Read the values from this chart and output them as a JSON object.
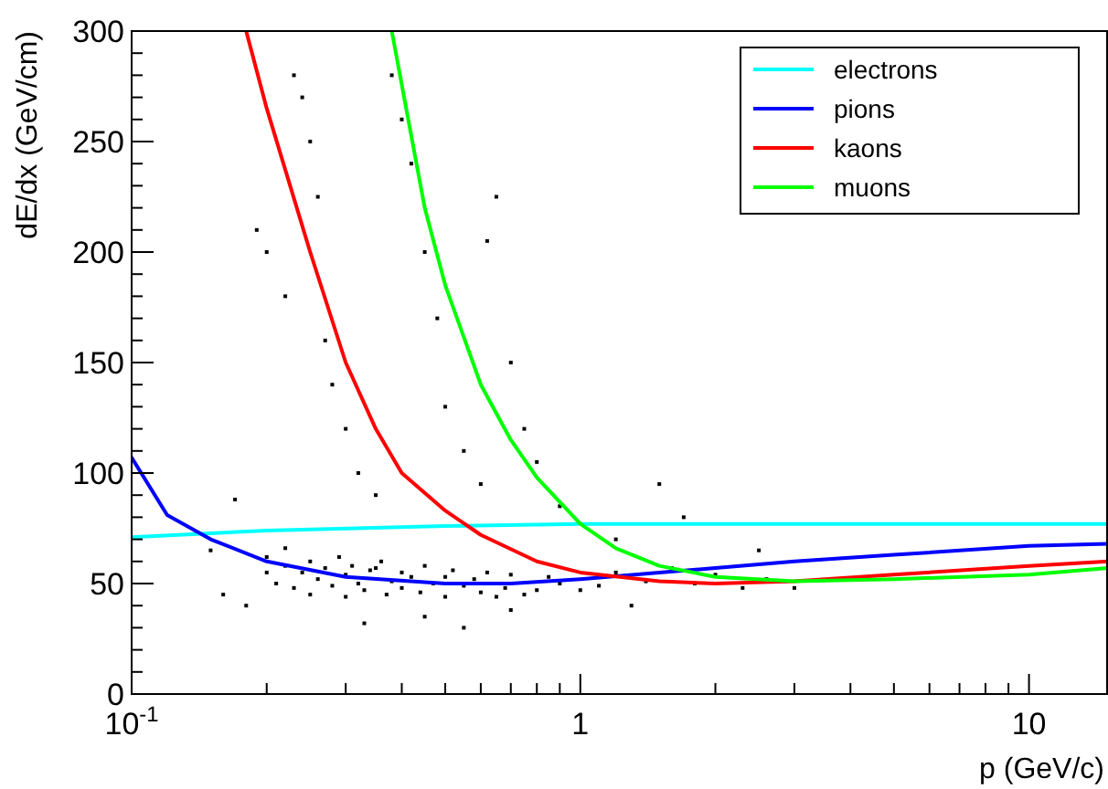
{
  "chart_data": {
    "type": "line",
    "xlabel": "p (GeV/c)",
    "ylabel": "dE/dx (GeV/cm)",
    "log": "x",
    "xlim": [
      0.1,
      15
    ],
    "ylim": [
      0,
      300
    ],
    "xticks": [
      {
        "value": 0.1,
        "label": "10$^{-1}$"
      },
      {
        "value": 0.2,
        "label": null
      },
      {
        "value": 0.3,
        "label": null
      },
      {
        "value": 0.4,
        "label": null
      },
      {
        "value": 0.5,
        "label": null
      },
      {
        "value": 0.6,
        "label": null
      },
      {
        "value": 0.7,
        "label": null
      },
      {
        "value": 0.8,
        "label": null
      },
      {
        "value": 0.9,
        "label": null
      },
      1,
      {
        "value": 2,
        "label": null
      },
      {
        "value": 3,
        "label": null
      },
      {
        "value": 4,
        "label": null
      },
      {
        "value": 5,
        "label": null
      },
      {
        "value": 6,
        "label": null
      },
      {
        "value": 7,
        "label": null
      },
      {
        "value": 8,
        "label": null
      },
      {
        "value": 9,
        "label": null
      },
      10
    ],
    "yticks": [
      0,
      {
        "value": 10,
        "label": null
      },
      {
        "value": 20,
        "label": null
      },
      {
        "value": 30,
        "label": null
      },
      {
        "value": 40,
        "label": null
      },
      50,
      {
        "value": 60,
        "label": null
      },
      {
        "value": 70,
        "label": null
      },
      {
        "value": 80,
        "label": null
      },
      {
        "value": 90,
        "label": null
      },
      100,
      {
        "value": 110,
        "label": null
      },
      {
        "value": 120,
        "label": null
      },
      {
        "value": 130,
        "label": null
      },
      {
        "value": 140,
        "label": null
      },
      150,
      {
        "value": 160,
        "label": null
      },
      {
        "value": 170,
        "label": null
      },
      {
        "value": 180,
        "label": null
      },
      {
        "value": 190,
        "label": null
      },
      200,
      {
        "value": 210,
        "label": null
      },
      {
        "value": 220,
        "label": null
      },
      {
        "value": 230,
        "label": null
      },
      {
        "value": 240,
        "label": null
      },
      250,
      {
        "value": 260,
        "label": null
      },
      {
        "value": 270,
        "label": null
      },
      {
        "value": 280,
        "label": null
      },
      {
        "value": 290,
        "label": null
      },
      300
    ],
    "grid": false,
    "legend": "top right",
    "series": [
      {
        "type": "scatter",
        "marker": "square",
        "color": "#000000",
        "x": [
          0.2,
          0.2,
          0.21,
          0.22,
          0.22,
          0.23,
          0.24,
          0.25,
          0.25,
          0.26,
          0.27,
          0.28,
          0.29,
          0.3,
          0.3,
          0.31,
          0.32,
          0.33,
          0.34,
          0.35,
          0.36,
          0.37,
          0.38,
          0.4,
          0.4,
          0.42,
          0.44,
          0.45,
          0.47,
          0.5,
          0.5,
          0.52,
          0.55,
          0.58,
          0.6,
          0.62,
          0.65,
          0.68,
          0.7,
          0.75,
          0.8,
          0.85,
          0.9,
          1.0,
          1.1,
          1.2,
          1.4,
          1.6,
          1.8,
          2.0,
          2.3,
          2.6,
          0.15,
          0.16,
          0.17,
          0.18,
          0.19,
          0.2,
          0.22,
          0.23,
          0.24,
          0.25,
          0.26,
          0.27,
          0.28,
          0.3,
          0.32,
          0.35,
          0.38,
          0.4,
          0.42,
          0.45,
          0.48,
          0.5,
          0.55,
          0.6,
          0.62,
          0.65,
          0.7,
          0.75,
          0.8,
          0.9,
          1.2,
          1.5,
          1.7,
          2.5,
          3,
          0.33,
          0.45,
          0.7,
          1.3,
          0.55
        ],
        "values": [
          55,
          62,
          50,
          58,
          66,
          48,
          55,
          60,
          45,
          52,
          57,
          49,
          62,
          54,
          44,
          58,
          50,
          47,
          56,
          57,
          60,
          45,
          51,
          55,
          48,
          53,
          46,
          58,
          50,
          53,
          44,
          56,
          49,
          52,
          46,
          55,
          44,
          48,
          54,
          45,
          47,
          53,
          50,
          47,
          49,
          55,
          51,
          57,
          50,
          54,
          48,
          52,
          65,
          45,
          88,
          40,
          210,
          200,
          180,
          280,
          270,
          250,
          225,
          160,
          140,
          120,
          100,
          90,
          280,
          260,
          240,
          200,
          170,
          130,
          110,
          95,
          205,
          225,
          150,
          120,
          105,
          85,
          70,
          95,
          80,
          65,
          48,
          32,
          35,
          38,
          40,
          30
        ]
      },
      {
        "name": "electrons",
        "color": "#00ffff",
        "x": [
          0.1,
          0.2,
          0.5,
          1,
          15
        ],
        "values": [
          71,
          74,
          76,
          77,
          77
        ]
      },
      {
        "name": "pions",
        "color": "#0000ff",
        "x": [
          0.1,
          0.12,
          0.15,
          0.2,
          0.3,
          0.5,
          0.7,
          1,
          1.5,
          2,
          3,
          5,
          10,
          15
        ],
        "values": [
          107,
          81,
          70,
          60,
          53,
          50,
          50,
          52,
          55,
          57,
          60,
          63,
          67,
          68
        ]
      },
      {
        "name": "kaons",
        "color": "#ff0000",
        "x": [
          0.18,
          0.2,
          0.25,
          0.3,
          0.35,
          0.4,
          0.5,
          0.6,
          0.8,
          1,
          1.5,
          2,
          3,
          5,
          10,
          15
        ],
        "values": [
          300,
          265,
          200,
          150,
          120,
          100,
          83,
          72,
          60,
          55,
          51,
          50,
          51,
          54,
          58,
          60
        ]
      },
      {
        "name": "muons",
        "color": "#00ff00",
        "x": [
          0.38,
          0.45,
          0.5,
          0.6,
          0.7,
          0.8,
          1,
          1.2,
          1.5,
          2,
          3,
          5,
          10,
          15
        ],
        "values": [
          300,
          220,
          185,
          140,
          115,
          98,
          77,
          66,
          58,
          53,
          51,
          52,
          54,
          57
        ]
      }
    ]
  }
}
